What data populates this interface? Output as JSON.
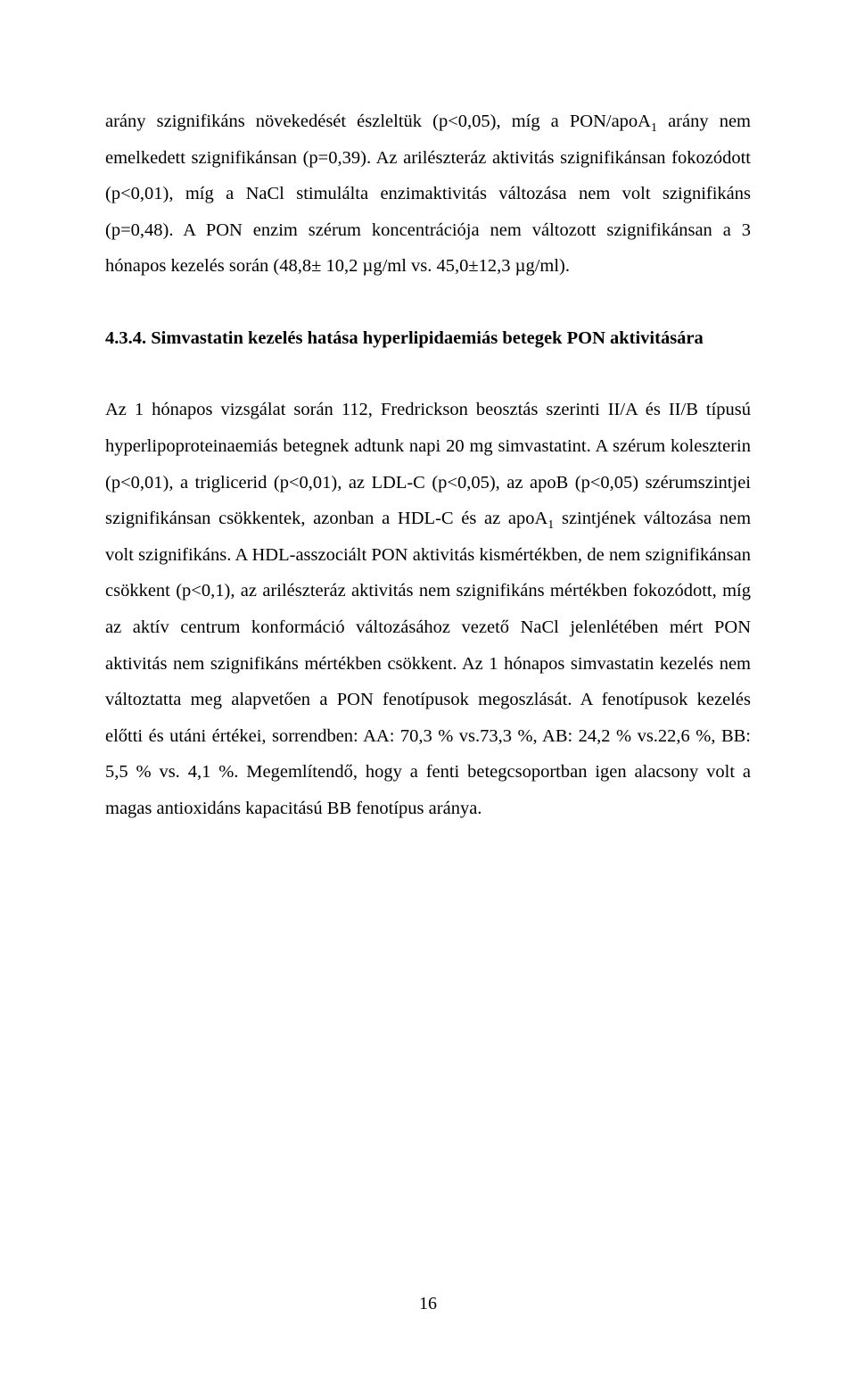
{
  "para1_a": "arány szignifikáns növekedését észleltük (p<0,05), míg a PON/apoA",
  "para1_sub": "1",
  "para1_b": " arány nem emelkedett szignifikánsan (p=0,39). Az arilészteráz aktivitás szignifikánsan fokozódott (p<0,01), míg a NaCl stimulálta enzimaktivitás változása nem volt szignifikáns (p=0,48). A PON enzim szérum koncentrációja nem változott szignifikánsan a 3 hónapos kezelés során (48,8± 10,2 µg/ml vs. 45,0±12,3 µg/ml).",
  "heading": "4.3.4. Simvastatin kezelés hatása hyperlipidaemiás betegek PON aktivitására",
  "para2_a": "Az 1 hónapos vizsgálat során 112, Fredrickson beosztás szerinti II/A és II/B típusú hyperlipoproteinaemiás betegnek adtunk napi 20 mg simvastatint. A szérum koleszterin (p<0,01), a triglicerid (p<0,01), az LDL-C (p<0,05), az apoB (p<0,05) szérumszintjei szignifikánsan csökkentek, azonban a HDL-C és az apoA",
  "para2_sub": "1",
  "para2_b": " szintjének változása nem volt szignifikáns. A HDL-asszociált PON aktivitás kismértékben, de nem szignifikánsan csökkent (p<0,1), az arilészteráz aktivitás nem szignifikáns mértékben fokozódott, míg az aktív centrum konformáció változásához vezető NaCl jelenlétében mért PON aktivitás nem szignifikáns mértékben csökkent. Az 1 hónapos simvastatin kezelés nem változtatta meg alapvetően a PON fenotípusok megoszlását. A fenotípusok kezelés előtti és utáni értékei, sorrendben: AA: 70,3 % vs.73,3 %, AB: 24,2 % vs.22,6 %, BB: 5,5 % vs. 4,1 %. Megemlítendő, hogy a fenti betegcsoportban igen alacsony volt a magas antioxidáns kapacitású BB fenotípus aránya.",
  "page_number": "16"
}
